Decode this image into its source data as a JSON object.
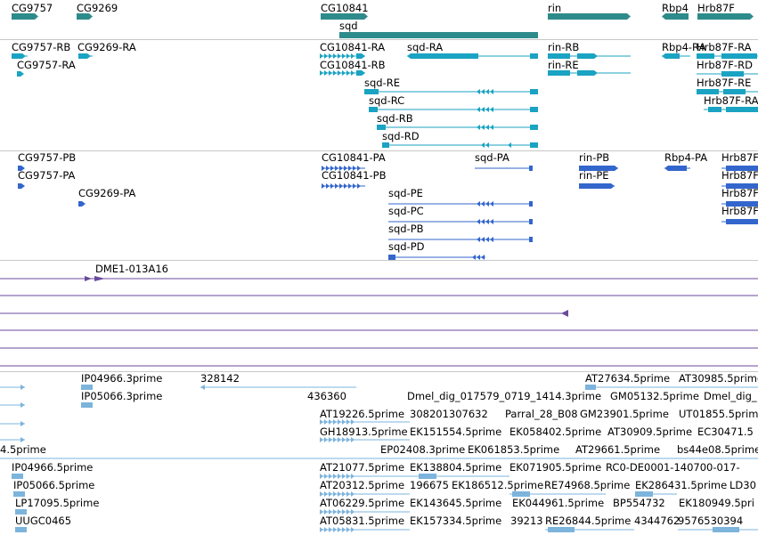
{
  "colors": {
    "gene": "#2e8b8b",
    "transcript": "#1aa3c2",
    "protein": "#3366cc",
    "clone": "#6a4a9c",
    "est": "#7cb4dc",
    "separator": "#c8c8c8"
  },
  "tracks": {
    "genes": [
      {
        "label": "CG9757"
      },
      {
        "label": "CG9269"
      },
      {
        "label": "CG10841"
      },
      {
        "label": "sqd"
      },
      {
        "label": "rin"
      },
      {
        "label": "Rbp4"
      },
      {
        "label": "Hrb87F"
      }
    ],
    "transcripts": [
      {
        "label": "CG9757-RB"
      },
      {
        "label": "CG9269-RA"
      },
      {
        "label": "CG9757-RA"
      },
      {
        "label": "CG10841-RA"
      },
      {
        "label": "CG10841-RB"
      },
      {
        "label": "sqd-RA"
      },
      {
        "label": "sqd-RE"
      },
      {
        "label": "sqd-RC"
      },
      {
        "label": "sqd-RB"
      },
      {
        "label": "sqd-RD"
      },
      {
        "label": "rin-RB"
      },
      {
        "label": "rin-RE"
      },
      {
        "label": "Rbp4-RA"
      },
      {
        "label": "Hrb87F-RA"
      },
      {
        "label": "Hrb87F-RD"
      },
      {
        "label": "Hrb87F-RE"
      },
      {
        "label": "Hrb87F-RA"
      }
    ],
    "proteins": [
      {
        "label": "CG9757-PB"
      },
      {
        "label": "CG9757-PA"
      },
      {
        "label": "CG9269-PA"
      },
      {
        "label": "CG10841-PA"
      },
      {
        "label": "CG10841-PB"
      },
      {
        "label": "sqd-PA"
      },
      {
        "label": "sqd-PE"
      },
      {
        "label": "sqd-PC"
      },
      {
        "label": "sqd-PB"
      },
      {
        "label": "sqd-PD"
      },
      {
        "label": "rin-PB"
      },
      {
        "label": "rin-PE"
      },
      {
        "label": "Rbp4-PA"
      },
      {
        "label": "Hrb87F"
      },
      {
        "label": "Hrb87F"
      },
      {
        "label": "Hrb87F"
      },
      {
        "label": "Hrb87F"
      }
    ],
    "clones": [
      {
        "label": "DME1-013A16"
      }
    ],
    "ests": [
      {
        "label": "IP04966.3prime"
      },
      {
        "label": "328142"
      },
      {
        "label": "AT27634.5prime"
      },
      {
        "label": "AT30985.5prime"
      },
      {
        "label": "IP05066.3prime"
      },
      {
        "label": "436360"
      },
      {
        "label": "Dmel_dig_017579_0719_1414.3prime"
      },
      {
        "label": "GM05132.5prime"
      },
      {
        "label": "Dmel_dig_"
      },
      {
        "label": "AT19226.5prime"
      },
      {
        "label": "308201307632"
      },
      {
        "label": "Parral_28_B08"
      },
      {
        "label": "GM23901.5prime"
      },
      {
        "label": "UT01855.5prime"
      },
      {
        "label": "GH18913.5prime"
      },
      {
        "label": "EK151554.5prime"
      },
      {
        "label": "EK058402.5prime"
      },
      {
        "label": "AT30909.5prime"
      },
      {
        "label": "EC30471.5"
      },
      {
        "label": "4.5prime"
      },
      {
        "label": "EP02408.3prime"
      },
      {
        "label": "EK061853.5prime"
      },
      {
        "label": "AT29661.5prime"
      },
      {
        "label": "bs44e08.5prime"
      },
      {
        "label": "IP04966.5prime"
      },
      {
        "label": "AT21077.5prime"
      },
      {
        "label": "EK138804.5prime"
      },
      {
        "label": "EK071905.5prime"
      },
      {
        "label": "RC0-DE0001-140700-017-"
      },
      {
        "label": "IP05066.5prime"
      },
      {
        "label": "AT20312.5prime"
      },
      {
        "label": "196675"
      },
      {
        "label": "EK186512.5prime"
      },
      {
        "label": "RE74968.5prime"
      },
      {
        "label": "EK286431.5prime"
      },
      {
        "label": "LD30"
      },
      {
        "label": "LP17095.5prime"
      },
      {
        "label": "AT06229.5prime"
      },
      {
        "label": "EK143645.5prime"
      },
      {
        "label": "EK044961.5prime"
      },
      {
        "label": "BP554732"
      },
      {
        "label": "EK180949.5pri"
      },
      {
        "label": "UUGC0465"
      },
      {
        "label": "AT05831.5prime"
      },
      {
        "label": "EK157334.5prime"
      },
      {
        "label": "39213"
      },
      {
        "label": "RE26844.5prime"
      },
      {
        "label": "4344762"
      },
      {
        "label": "9576530394"
      }
    ]
  }
}
